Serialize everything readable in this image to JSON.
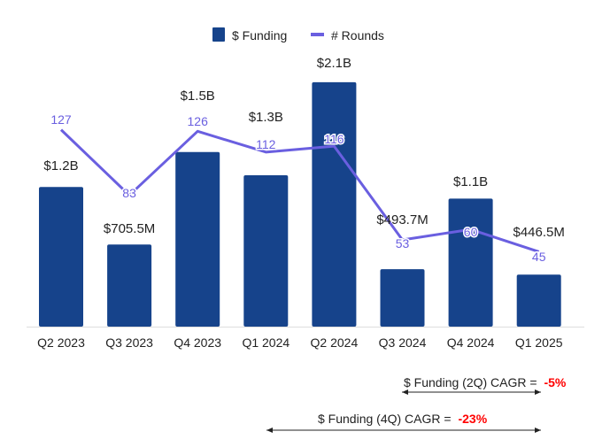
{
  "chart_data": {
    "type": "bar",
    "title": "",
    "xlabel": "",
    "ylabel": "",
    "categories": [
      "Q2 2023",
      "Q3 2023",
      "Q4 2023",
      "Q1 2024",
      "Q2 2024",
      "Q3 2024",
      "Q4 2024",
      "Q1 2025"
    ],
    "series": [
      {
        "name": "$ Funding",
        "type": "bar",
        "color": "#16438b",
        "unit": "USD billions",
        "values": [
          1.2,
          0.7055,
          1.5,
          1.3,
          2.1,
          0.4937,
          1.1,
          0.4465
        ],
        "labels": [
          "$1.2B",
          "$705.5M",
          "$1.5B",
          "$1.3B",
          "$2.1B",
          "$493.7M",
          "$1.1B",
          "$446.5M"
        ]
      },
      {
        "name": "# Rounds",
        "type": "line",
        "color": "#6a5fe0",
        "values": [
          127,
          83,
          126,
          112,
          116,
          53,
          60,
          45
        ],
        "labels": [
          "127",
          "83",
          "126",
          "112",
          "116",
          "53",
          "60",
          "45"
        ]
      }
    ],
    "legend_position": "top-center",
    "grid": false,
    "annotations": [
      {
        "text": "$ Funding (2Q) CAGR = ",
        "value": "-5%",
        "from": "Q3 2024",
        "to": "Q1 2025"
      },
      {
        "text": "$ Funding (4Q) CAGR = ",
        "value": "-23%",
        "from": "Q1 2024",
        "to": "Q1 2025"
      }
    ]
  }
}
